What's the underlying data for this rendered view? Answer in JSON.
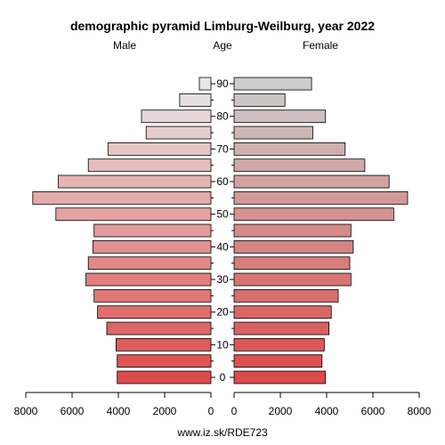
{
  "chart_data": {
    "type": "bar",
    "title": "demographic pyramid Limburg-Weilburg, year 2022",
    "left_label": "Male",
    "center_label": "Age",
    "right_label": "Female",
    "source": "www.iz.sk/RDE723",
    "age_groups": [
      "0",
      "5",
      "10",
      "15",
      "20",
      "25",
      "30",
      "35",
      "40",
      "45",
      "50",
      "55",
      "60",
      "65",
      "70",
      "75",
      "80",
      "85",
      "90"
    ],
    "age_tick_labels": [
      "0",
      "10",
      "20",
      "30",
      "40",
      "50",
      "60",
      "70",
      "80",
      "90"
    ],
    "series": [
      {
        "name": "Male",
        "values": [
          4050,
          4050,
          4100,
          4500,
          4900,
          5050,
          5400,
          5300,
          5100,
          5050,
          6700,
          7700,
          6600,
          5300,
          4450,
          2800,
          3000,
          1350,
          500
        ]
      },
      {
        "name": "Female",
        "values": [
          3950,
          3800,
          3900,
          4100,
          4200,
          4500,
          5050,
          5000,
          5150,
          5050,
          6900,
          7500,
          6700,
          5650,
          4800,
          3400,
          3950,
          2200,
          3350
        ]
      }
    ],
    "xlim": [
      0,
      8000
    ],
    "x_tick_labels": [
      "8000",
      "6000",
      "4000",
      "2000",
      "0",
      "0",
      "2000",
      "4000",
      "6000",
      "8000"
    ],
    "colors": {
      "young": "#de4b4b",
      "old": "#e8e8e8",
      "stroke": "#000000"
    },
    "grid": false
  }
}
